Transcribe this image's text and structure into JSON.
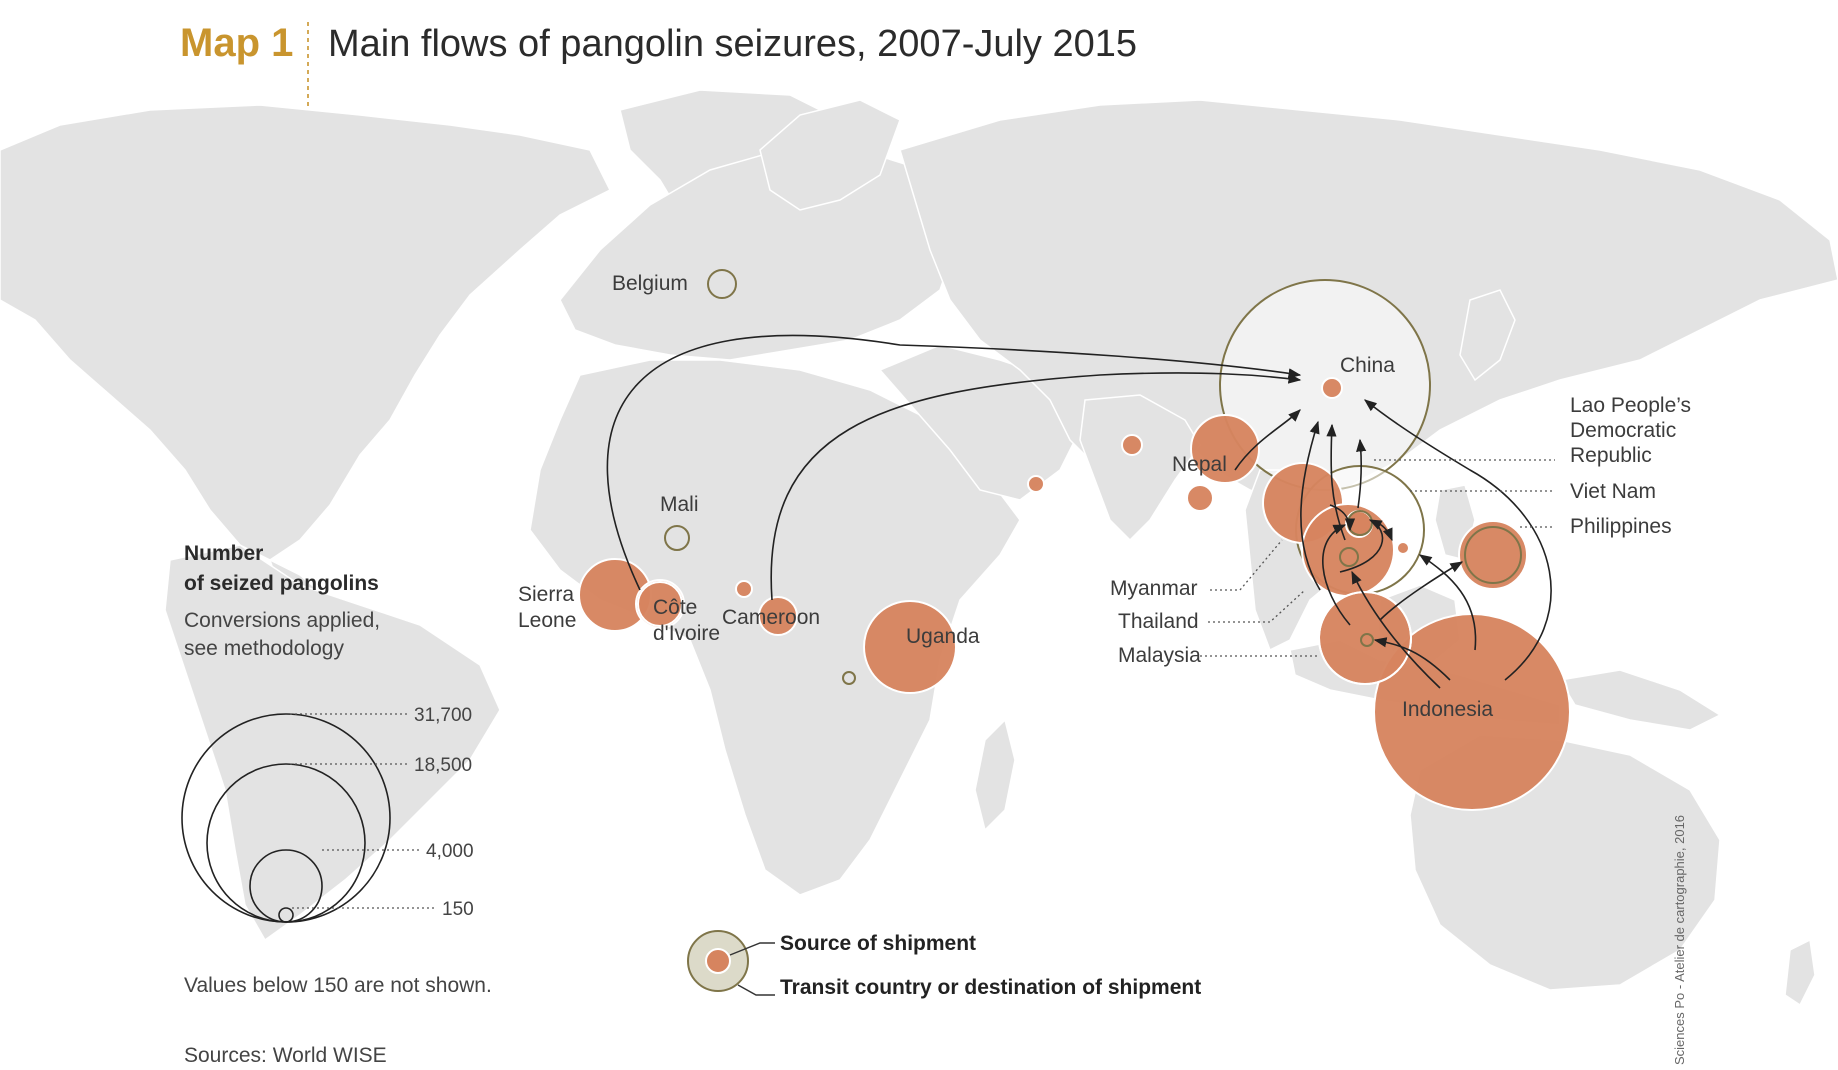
{
  "header": {
    "map_number": "Map 1",
    "title": "Main flows of pangolin seizures, 2007-July 2015"
  },
  "legend": {
    "heading_line1": "Number",
    "heading_line2": "of seized pangolins",
    "sub_line1": "Conversions applied,",
    "sub_line2": "see methodology",
    "scale_values": [
      "31,700",
      "18,500",
      "4,000",
      "150"
    ],
    "note": "Values below 150 are not shown."
  },
  "key": {
    "source_label": "Source of shipment",
    "transit_label": "Transit country or destination of shipment"
  },
  "sources": "Sources: World WISE",
  "credit": "Sciences Po - Atelier de cartographie, 2016",
  "colors": {
    "source_fill": "#d6845f",
    "destination_outline": "#7f7549",
    "land": "#e3e3e3",
    "title_accent": "#c9952e"
  },
  "places": {
    "belgium": "Belgium",
    "mali": "Mali",
    "sierra_leone_1": "Sierra",
    "sierra_leone_2": "Leone",
    "cote_divoire_1": "Côte",
    "cote_divoire_2": "d'Ivoire",
    "cameroon": "Cameroon",
    "uganda": "Uganda",
    "china": "China",
    "nepal": "Nepal",
    "lao_1": "Lao People’s",
    "lao_2": "Democratic",
    "lao_3": "Republic",
    "viet_nam": "Viet Nam",
    "philippines": "Philippines",
    "myanmar": "Myanmar",
    "thailand": "Thailand",
    "malaysia": "Malaysia",
    "indonesia": "Indonesia"
  }
}
